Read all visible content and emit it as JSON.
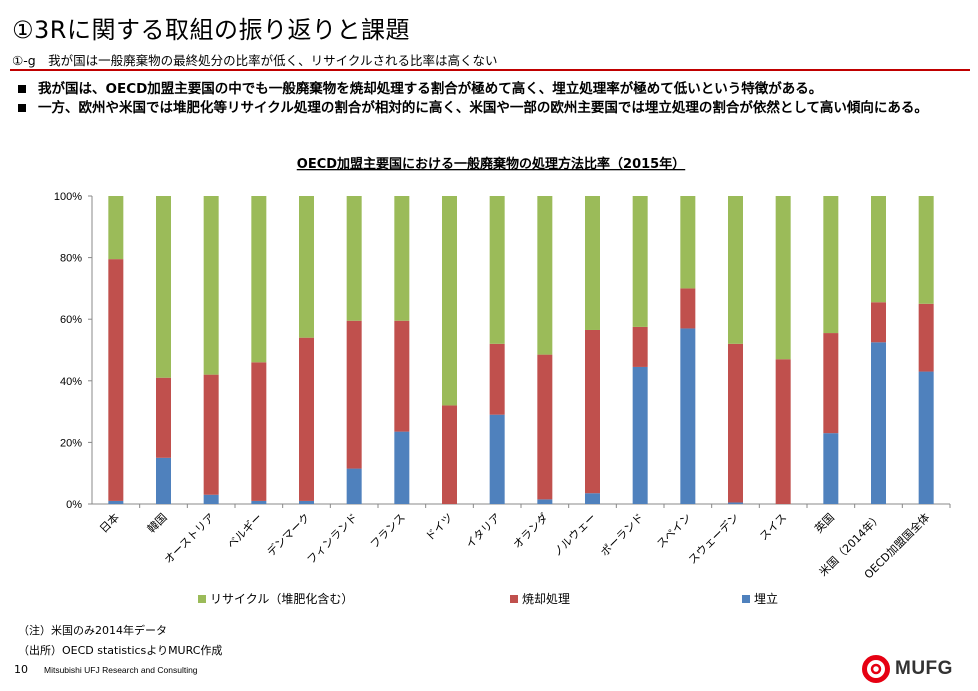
{
  "header": {
    "title": "①3Rに関する取組の振り返りと課題",
    "subtitle": "①-g　我が国は一般廃棄物の最終処分の比率が低く、リサイクルされる比率は高くない"
  },
  "bullets": [
    "我が国は、OECD加盟主要国の中でも一般廃棄物を焼却処理する割合が極めて高く、埋立処理率が極めて低いという特徴がある。",
    "一方、欧州や米国では堆肥化等リサイクル処理の割合が相対的に高く、米国や一部の欧州主要国では埋立処理の割合が依然として高い傾向にある。"
  ],
  "chart_data": {
    "type": "bar",
    "stacked": true,
    "title": "OECD加盟主要国における一般廃棄物の処理方法比率（2015年）",
    "categories": [
      "日本",
      "韓国",
      "オーストリア",
      "ベルギー",
      "デンマーク",
      "フィンランド",
      "フランス",
      "ドイツ",
      "イタリア",
      "オランダ",
      "ノルウェー",
      "ポーランド",
      "スペイン",
      "スウェーデン",
      "スイス",
      "英国",
      "米国（2014年）",
      "OECD加盟国全体"
    ],
    "series": [
      {
        "name": "埋立",
        "color": "#4f81bd",
        "values": [
          1,
          15,
          3,
          1,
          1,
          11.5,
          23.5,
          0,
          29,
          1.5,
          3.5,
          44.5,
          57,
          0.5,
          0,
          23,
          52.5,
          43
        ]
      },
      {
        "name": "焼却処理",
        "color": "#c0504d",
        "values": [
          78.5,
          26,
          39,
          45,
          53,
          48,
          36,
          32,
          23,
          47,
          53,
          13,
          13,
          51.5,
          47,
          32.5,
          13,
          22
        ]
      },
      {
        "name": "リサイクル（堆肥化含む）",
        "color": "#9bbb59",
        "values": [
          20.5,
          59,
          58,
          54,
          46,
          40.5,
          40.5,
          68,
          48,
          51.5,
          43.5,
          42.5,
          30,
          48,
          53,
          44.5,
          34.5,
          35
        ]
      }
    ],
    "legend_order": [
      "リサイクル（堆肥化含む）",
      "焼却処理",
      "埋立"
    ],
    "ylim": [
      0,
      100
    ],
    "yticks": [
      "0%",
      "20%",
      "40%",
      "60%",
      "80%",
      "100%"
    ],
    "grid": false,
    "legend_position": "bottom"
  },
  "notes": [
    "（注）米国のみ2014年データ",
    "（出所）OECD statisticsよりMURC作成"
  ],
  "footer": {
    "page": "10",
    "company": "Mitsubishi UFJ Research and Consulting",
    "logo_text": "MUFG",
    "logo_color": "#e60012"
  }
}
